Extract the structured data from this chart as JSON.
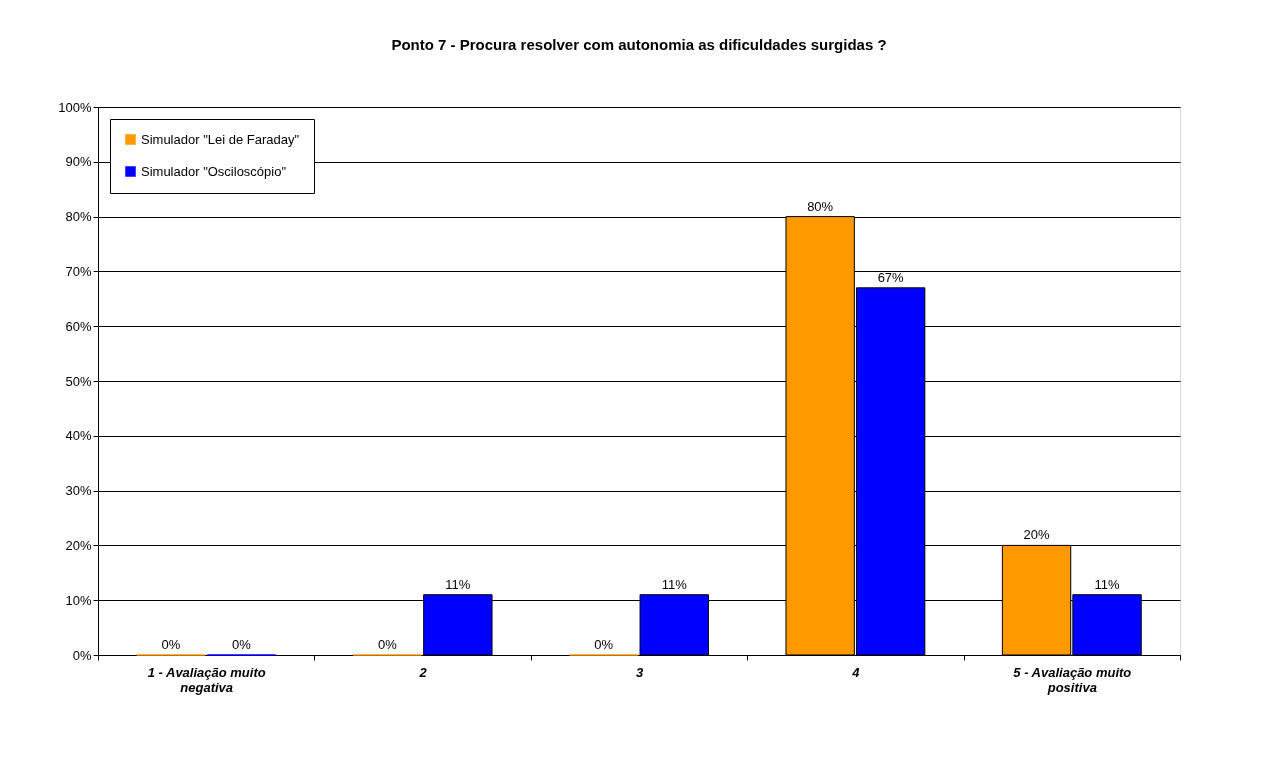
{
  "chart_data": {
    "type": "bar",
    "title": "Ponto 7 - Procura resolver com autonomia as dificuldades surgidas ?",
    "categories": [
      "1 - Avaliação muito negativa",
      "2",
      "3",
      "4",
      "5 - Avaliação muito positiva"
    ],
    "series": [
      {
        "name": "Simulador \"Lei de Faraday\"",
        "color": "#ff9900",
        "values": [
          0,
          0,
          0,
          80,
          20
        ],
        "value_labels": [
          "0%",
          "0%",
          "0%",
          "80%",
          "20%"
        ]
      },
      {
        "name": "Simulador \"Osciloscópio\"",
        "color": "#0000ff",
        "values": [
          0,
          11,
          11,
          67,
          11
        ],
        "value_labels": [
          "0%",
          "11%",
          "11%",
          "67%",
          "11%"
        ]
      }
    ],
    "ylim": [
      0,
      100
    ],
    "yticks": [
      {
        "value": 0,
        "label": "0%"
      },
      {
        "value": 10,
        "label": "10%"
      },
      {
        "value": 20,
        "label": "20%"
      },
      {
        "value": 30,
        "label": "30%"
      },
      {
        "value": 40,
        "label": "40%"
      },
      {
        "value": 50,
        "label": "50%"
      },
      {
        "value": 60,
        "label": "60%"
      },
      {
        "value": 70,
        "label": "70%"
      },
      {
        "value": 80,
        "label": "80%"
      },
      {
        "value": 90,
        "label": "90%"
      },
      {
        "value": 100,
        "label": "100%"
      }
    ],
    "grid": "y",
    "legend": "top left"
  }
}
